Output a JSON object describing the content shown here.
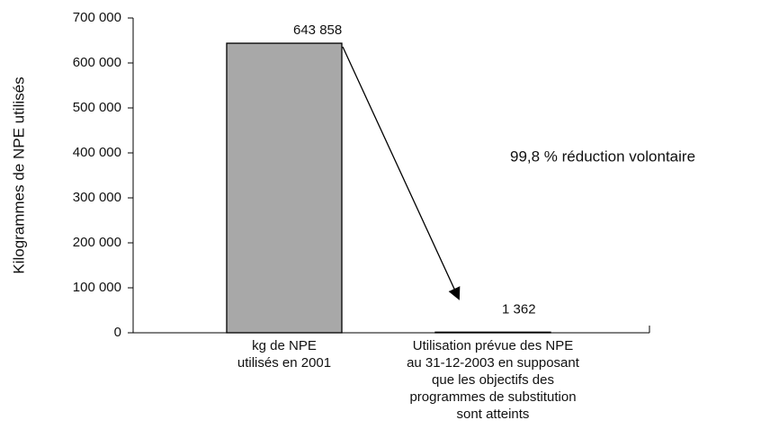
{
  "chart_data": {
    "type": "bar",
    "y_label": "Kilogrammes de NPE utilisés",
    "categories": [
      [
        "kg de NPE",
        "utilisés en 2001"
      ],
      [
        "Utilisation prévue des NPE",
        "au 31-12-2003 en supposant",
        "que les objectifs des",
        "programmes de substitution",
        "sont atteints"
      ]
    ],
    "values": [
      643858,
      1362
    ],
    "value_labels": [
      "643 858",
      "1 362"
    ],
    "colors": [
      "#a8a8a8",
      "#dedede"
    ],
    "annotation": "99,8 % réduction volontaire",
    "ylim": [
      0,
      700000
    ],
    "yticks": [
      0,
      {
        "value": 100000,
        "label": "100 000"
      },
      {
        "value": 200000,
        "label": "200 000"
      },
      {
        "value": 300000,
        "label": "300 000"
      },
      {
        "value": 400000,
        "label": "400 000"
      },
      {
        "value": 500000,
        "label": "500 000"
      },
      {
        "value": 600000,
        "label": "600 000"
      },
      {
        "value": 700000,
        "label": "700 000"
      }
    ],
    "grid": false
  }
}
